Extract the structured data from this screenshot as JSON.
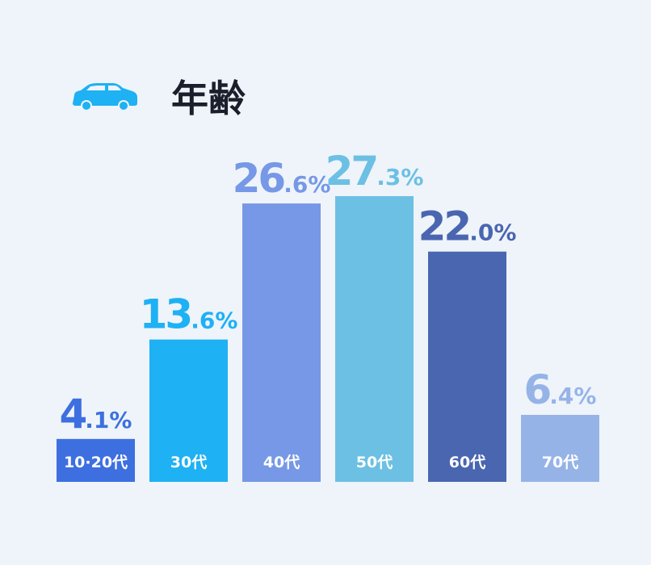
{
  "chart_data": {
    "type": "bar",
    "title": "年齢",
    "categories": [
      "10·20代",
      "30代",
      "40代",
      "50代",
      "60代",
      "70代"
    ],
    "values": [
      4.1,
      13.6,
      26.6,
      27.3,
      22.0,
      6.4
    ],
    "value_labels": [
      "4.1%",
      "13.6%",
      "26.6%",
      "27.3%",
      "22.0%",
      "6.4%"
    ],
    "colors": [
      "#3d6fe0",
      "#1eb1f3",
      "#7698e6",
      "#6cc0e3",
      "#4a66b0",
      "#96b3e8"
    ]
  }
}
